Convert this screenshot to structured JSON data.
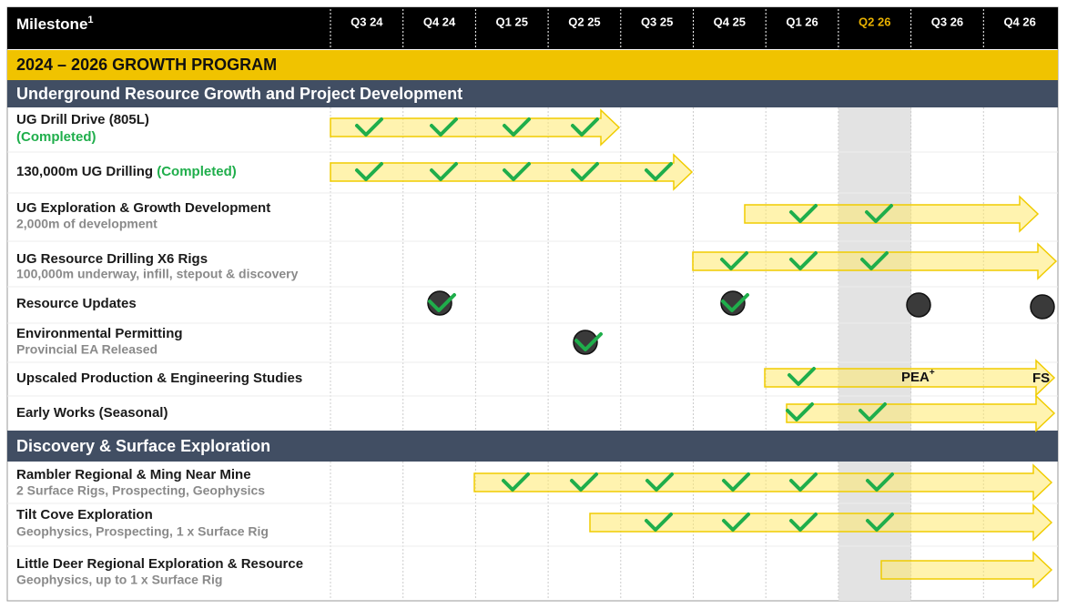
{
  "header": {
    "title": "Milestone",
    "superscript": "1",
    "quarters": [
      "Q3 24",
      "Q4 24",
      "Q1 25",
      "Q2 25",
      "Q3 25",
      "Q4 25",
      "Q1 26",
      "Q2 26",
      "Q3 26",
      "Q4 26"
    ]
  },
  "banner": "2024 – 2026 GROWTH PROGRAM",
  "sections": [
    {
      "title": "Underground Resource Growth and Project Development",
      "rows": [
        {
          "label": "UG Drill Drive (805L)",
          "status": "(Completed)"
        },
        {
          "label": "130,000m UG Drilling",
          "status": "(Completed)"
        },
        {
          "label": "UG Exploration & Growth Development",
          "sublabel": "2,000m of development"
        },
        {
          "label": "UG Resource Drilling X6 Rigs",
          "sublabel": "100,000m underway, infill, stepout & discovery"
        },
        {
          "label": "Resource Updates"
        },
        {
          "label": "Environmental Permitting",
          "sublabel": "Provincial EA Released"
        },
        {
          "label": "Upscaled Production & Engineering Studies"
        },
        {
          "label": "Early Works (Seasonal)"
        }
      ]
    },
    {
      "title": "Discovery & Surface Exploration",
      "rows": [
        {
          "label": "Rambler Regional & Ming Near Mine",
          "sublabel": "2 Surface Rigs, Prospecting, Geophysics"
        },
        {
          "label": "Tilt Cove Exploration",
          "sublabel": "Geophysics, Prospecting, 1 x Surface Rig"
        },
        {
          "label": "Little Deer Regional Exploration & Resource",
          "sublabel": "Geophysics, up to 1 x Surface Rig"
        }
      ]
    }
  ],
  "annotations": {
    "pea": "PEA",
    "pea_superscript": "+",
    "fs": "FS"
  }
}
